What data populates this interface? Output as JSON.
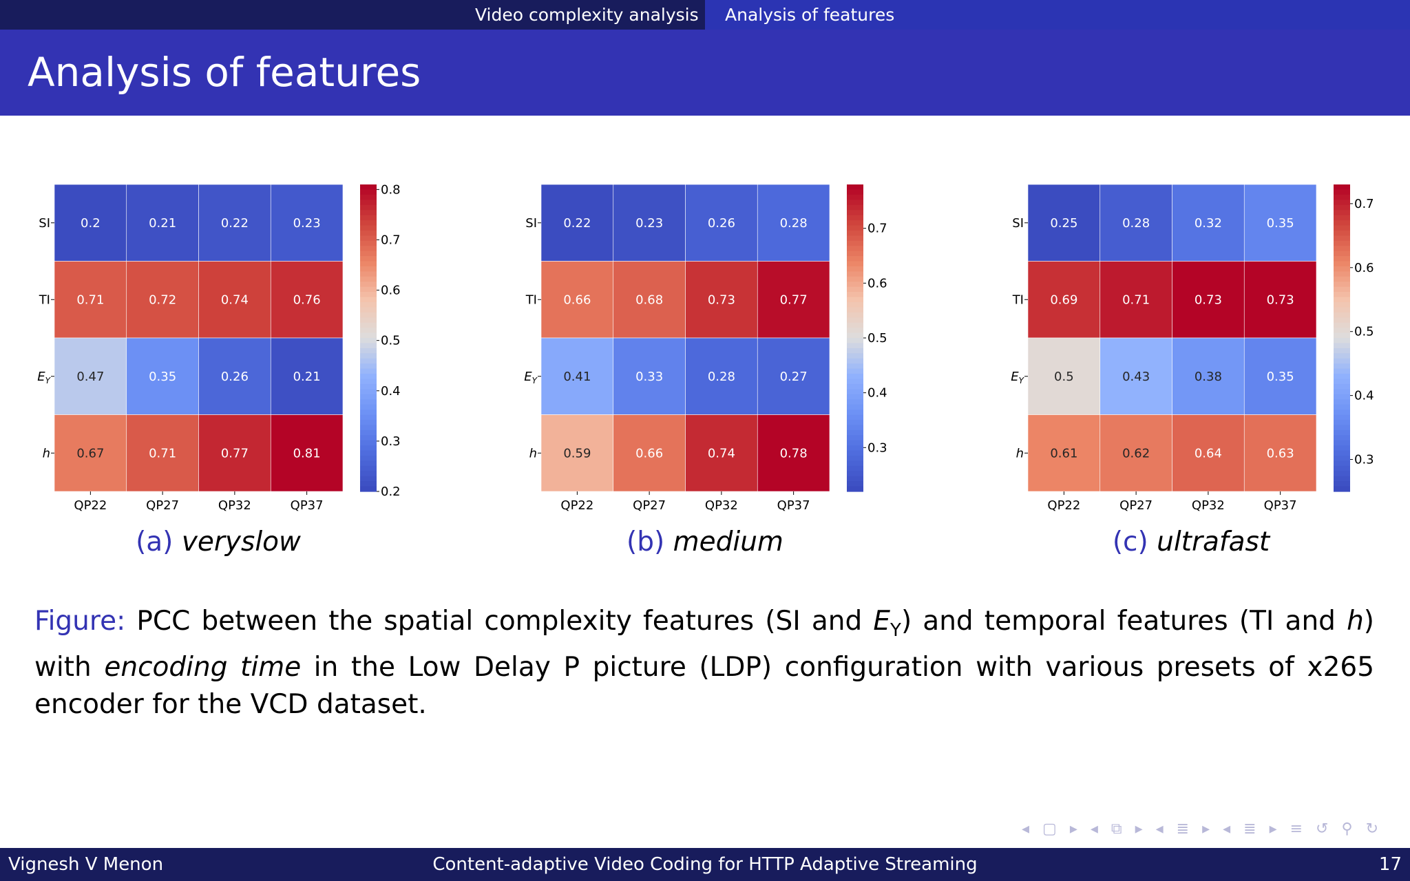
{
  "nav": {
    "sections": [
      "Video complexity analysis",
      "Analysis of features"
    ]
  },
  "frame": {
    "title": "Analysis of features"
  },
  "chart_data": [
    {
      "type": "heatmap",
      "title": "",
      "x_categories": [
        "QP22",
        "QP27",
        "QP32",
        "QP37"
      ],
      "y_categories": [
        "SI",
        "TI",
        "E_Y",
        "h"
      ],
      "values": [
        [
          0.2,
          0.21,
          0.22,
          0.23
        ],
        [
          0.71,
          0.72,
          0.74,
          0.76
        ],
        [
          0.47,
          0.35,
          0.26,
          0.21
        ],
        [
          0.67,
          0.71,
          0.77,
          0.81
        ]
      ],
      "colorbar": {
        "range": [
          0.2,
          0.81
        ],
        "ticks": [
          "0.2",
          "0.3",
          "0.4",
          "0.5",
          "0.6",
          "0.7",
          "0.8"
        ]
      },
      "colormap": "coolwarm"
    },
    {
      "type": "heatmap",
      "title": "",
      "x_categories": [
        "QP22",
        "QP27",
        "QP32",
        "QP37"
      ],
      "y_categories": [
        "SI",
        "TI",
        "E_Y",
        "h"
      ],
      "values": [
        [
          0.22,
          0.23,
          0.26,
          0.28
        ],
        [
          0.66,
          0.68,
          0.73,
          0.77
        ],
        [
          0.41,
          0.33,
          0.28,
          0.27
        ],
        [
          0.59,
          0.66,
          0.74,
          0.78
        ]
      ],
      "colorbar": {
        "range": [
          0.22,
          0.78
        ],
        "ticks": [
          "0.3",
          "0.4",
          "0.5",
          "0.6",
          "0.7"
        ]
      },
      "colormap": "coolwarm"
    },
    {
      "type": "heatmap",
      "title": "",
      "x_categories": [
        "QP22",
        "QP27",
        "QP32",
        "QP37"
      ],
      "y_categories": [
        "SI",
        "TI",
        "E_Y",
        "h"
      ],
      "values": [
        [
          0.25,
          0.28,
          0.32,
          0.35
        ],
        [
          0.69,
          0.71,
          0.73,
          0.73
        ],
        [
          0.5,
          0.43,
          0.38,
          0.35
        ],
        [
          0.61,
          0.62,
          0.64,
          0.63
        ]
      ],
      "colorbar": {
        "range": [
          0.25,
          0.73
        ],
        "ticks": [
          "0.3",
          "0.4",
          "0.5",
          "0.6",
          "0.7"
        ]
      },
      "colormap": "coolwarm"
    }
  ],
  "subcaptions": [
    {
      "label": "(a)",
      "name": "veryslow"
    },
    {
      "label": "(b)",
      "name": "medium"
    },
    {
      "label": "(c)",
      "name": "ultrafast"
    }
  ],
  "caption": {
    "label": "Figure:",
    "part1": "PCC between the spatial complexity features (SI and ",
    "ey_main": "E",
    "ey_sub": "Y",
    "part2": ") and temporal features (TI and ",
    "h": "h",
    "part3": ") with ",
    "emph": "encoding time",
    "part4": " in the Low Delay P picture (LDP) configuration with various presets of x265 encoder for the VCD dataset."
  },
  "nav_symbols": "◂ ▢ ▸ ◂ ⧉ ▸ ◂ ≣ ▸ ◂ ≣ ▸   ≡   ↺ ⚲ ↻",
  "footer": {
    "author": "Vignesh V Menon",
    "title": "Content-adaptive Video Coding for HTTP Adaptive Streaming",
    "page": "17"
  },
  "colors": {
    "structure": "#3333b3",
    "navbar_dark": "#181c5c"
  }
}
